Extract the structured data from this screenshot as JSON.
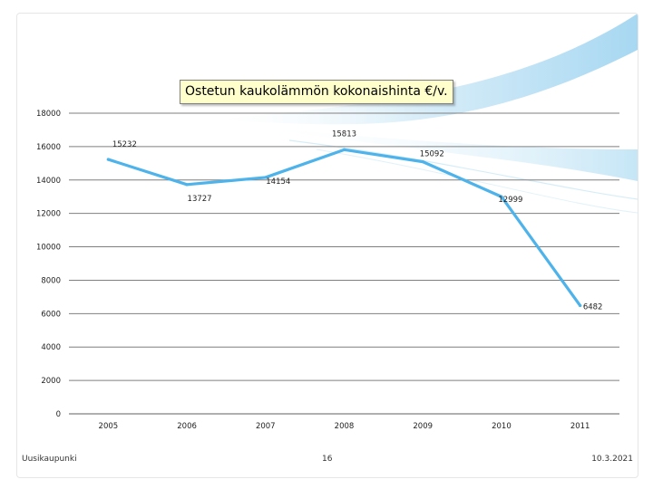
{
  "chart_data": {
    "type": "line",
    "title": "Ostetun kaukolämmön kokonaishinta €/v.",
    "categories": [
      "2005",
      "2006",
      "2007",
      "2008",
      "2009",
      "2010",
      "2011"
    ],
    "values": [
      15232,
      13727,
      14154,
      15813,
      15092,
      12999,
      6482
    ],
    "data_labels": [
      "15232",
      "13727",
      "14154",
      "15813",
      "15092",
      "12999",
      "6482"
    ],
    "y_ticks": [
      "0",
      "2000",
      "4000",
      "6000",
      "8000",
      "10000",
      "12000",
      "14000",
      "16000",
      "18000"
    ],
    "ylim": [
      0,
      18000
    ],
    "grid": true,
    "legend": "none",
    "line_color": "#4db3ea",
    "grid_color": "#7f7f7f"
  },
  "footer": {
    "left": "Uusikaupunki",
    "center": "16",
    "right": "10.3.2021"
  }
}
